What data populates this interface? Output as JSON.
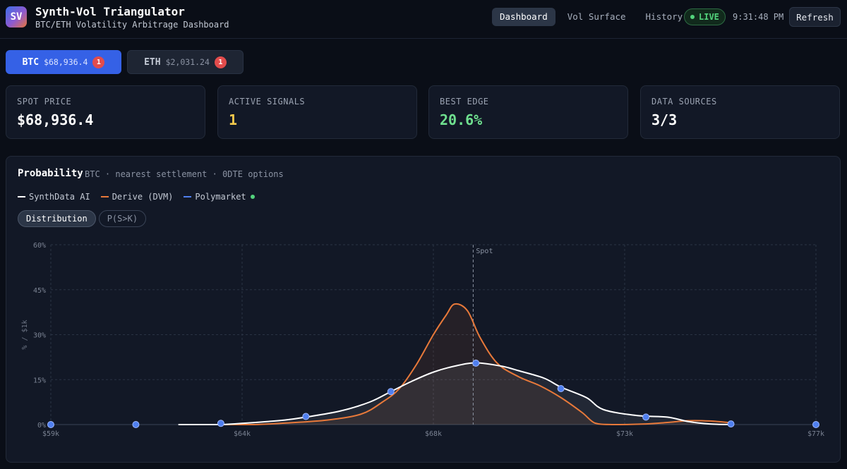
{
  "header": {
    "logo_text": "SV",
    "title": "Synth-Vol Triangulator",
    "subtitle": "BTC/ETH Volatility Arbitrage Dashboard",
    "nav": [
      {
        "label": "Dashboard",
        "active": true
      },
      {
        "label": "Vol Surface",
        "active": false
      },
      {
        "label": "History",
        "active": false
      }
    ],
    "live_label": "LIVE",
    "clock": "9:31:48 PM",
    "refresh_label": "Refresh"
  },
  "assets": [
    {
      "symbol": "BTC",
      "price": "$68,936.4",
      "count": "1",
      "active": true
    },
    {
      "symbol": "ETH",
      "price": "$2,031.24",
      "count": "1",
      "active": false
    }
  ],
  "stats": [
    {
      "label": "SPOT PRICE",
      "value": "$68,936.4",
      "color": "#ffffff"
    },
    {
      "label": "ACTIVE SIGNALS",
      "value": "1",
      "color": "#f2c94c"
    },
    {
      "label": "BEST EDGE",
      "value": "20.6%",
      "color": "#6fe08f"
    },
    {
      "label": "DATA SOURCES",
      "value": "3/3",
      "color": "#ffffff"
    }
  ],
  "panel": {
    "title": "Probability",
    "subtitle": "BTC · nearest settlement · 0DTE options",
    "legend": [
      {
        "label": "SynthData AI",
        "color": "#ffffff"
      },
      {
        "label": "Derive (DVM)",
        "color": "#e8793a"
      },
      {
        "label": "Polymarket",
        "color": "#4f7fef"
      }
    ],
    "modes": [
      {
        "label": "Distribution",
        "active": true
      },
      {
        "label": "P(S>K)",
        "active": false
      }
    ]
  },
  "chart_data": {
    "type": "line",
    "title": "",
    "xlabel": "",
    "ylabel": "% / $1k",
    "xlim": [
      59000,
      77000
    ],
    "ylim": [
      0,
      60
    ],
    "x_ticks": [
      59000,
      63500,
      68000,
      72500,
      77000
    ],
    "x_tick_labels": [
      "$59k",
      "$64k",
      "$68k",
      "$73k",
      "$77k"
    ],
    "y_ticks": [
      0,
      15,
      30,
      45,
      60
    ],
    "y_tick_labels": [
      "0%",
      "15%",
      "30%",
      "45%",
      "60%"
    ],
    "grid": true,
    "spot": {
      "x": 68936.4,
      "label": "Spot"
    },
    "series": [
      {
        "name": "SynthData AI",
        "color": "#ffffff",
        "x": [
          62000,
          62600,
          63000,
          63600,
          64500,
          65000,
          65800,
          66500,
          67000,
          67500,
          68000,
          68500,
          69000,
          69600,
          70000,
          70600,
          71000,
          71600,
          72000,
          72800,
          73500,
          74000,
          74500,
          75000
        ],
        "y": [
          0,
          0,
          0,
          0.5,
          1.5,
          2.5,
          4.5,
          7.5,
          11,
          14.5,
          17.5,
          19.5,
          20.6,
          19.5,
          18,
          15.5,
          12.5,
          9,
          5,
          3,
          2.5,
          1,
          0.2,
          0
        ]
      },
      {
        "name": "Derive (DVM)",
        "color": "#e8793a",
        "x": [
          62500,
          63000,
          63800,
          64500,
          65500,
          66300,
          66800,
          67200,
          67600,
          68000,
          68300,
          68500,
          68800,
          69100,
          69500,
          70000,
          70500,
          71000,
          71500,
          71800,
          72200,
          73000,
          73500,
          74000,
          74500,
          75000
        ],
        "y": [
          0,
          0,
          0,
          0.5,
          1.5,
          3.5,
          7.5,
          12,
          20,
          30,
          36.5,
          40.2,
          38,
          29,
          20.5,
          16,
          13,
          9,
          4,
          0.5,
          0,
          0.2,
          0.7,
          1.3,
          1.2,
          0.6
        ]
      },
      {
        "name": "Polymarket",
        "color": "#4f7fef",
        "x": [
          59000,
          61000,
          63000,
          65000,
          67000,
          69000,
          71000,
          73000,
          75000,
          77000
        ],
        "y": [
          0,
          0,
          0.4,
          2.7,
          11,
          20.5,
          12,
          2.5,
          0.2,
          0
        ]
      }
    ]
  }
}
